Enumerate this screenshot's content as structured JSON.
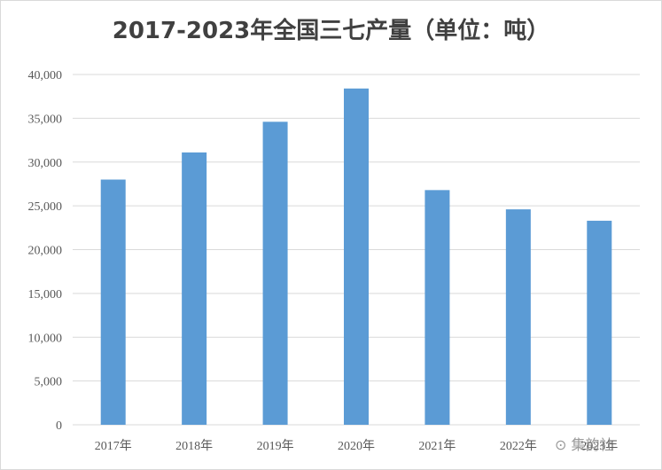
{
  "chart_data": {
    "type": "bar",
    "title": "2017-2023年全国三七产量（单位：吨）",
    "categories": [
      "2017年",
      "2018年",
      "2019年",
      "2020年",
      "2021年",
      "2022年",
      "2023年"
    ],
    "values": [
      28000,
      31100,
      34600,
      38400,
      26800,
      24600,
      23300
    ],
    "ylim": [
      0,
      40000
    ],
    "yticks": [
      0,
      5000,
      10000,
      15000,
      20000,
      25000,
      30000,
      35000,
      40000
    ],
    "ytick_labels": [
      "0",
      "5,000",
      "10,000",
      "15,000",
      "20,000",
      "25,000",
      "30,000",
      "35,000",
      "40,000"
    ],
    "grid": true,
    "legend": "none",
    "bar_color": "#5b9bd5",
    "grid_color": "#d9d9d9"
  },
  "watermark": {
    "icon": "wechat-icon",
    "text": "集韵社"
  }
}
